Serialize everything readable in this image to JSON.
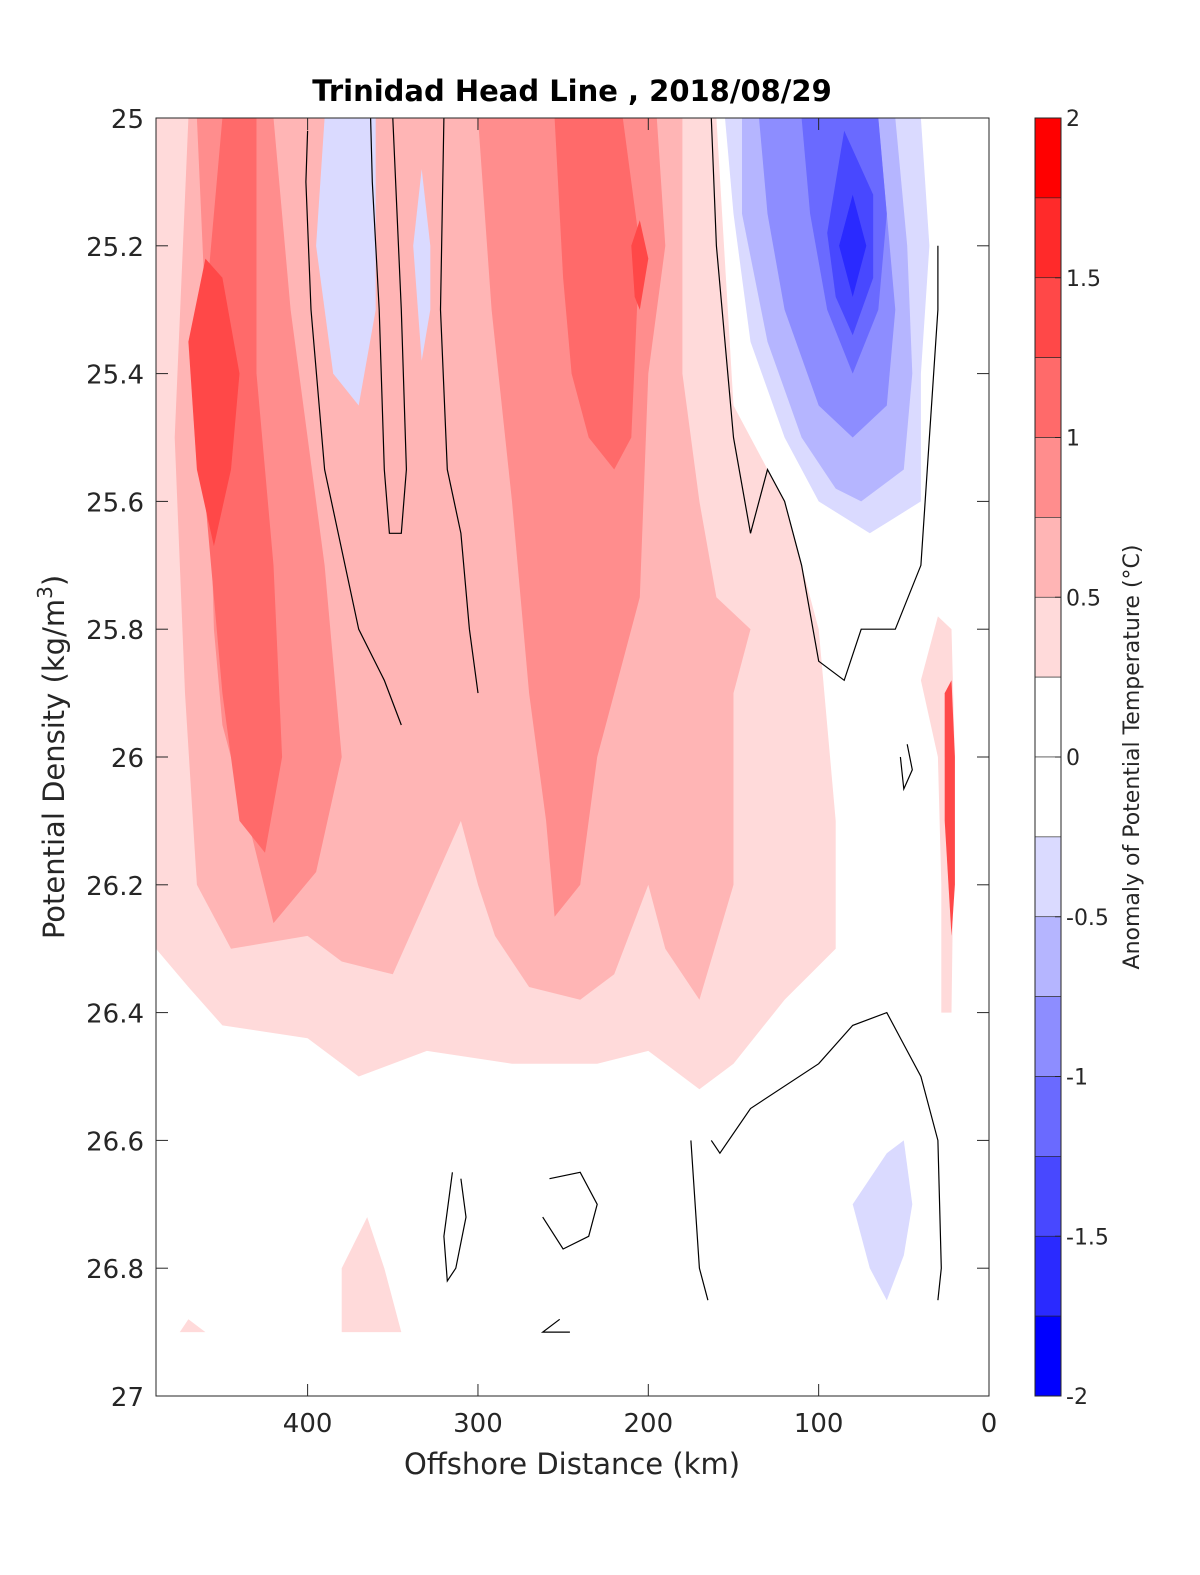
{
  "chart_data": {
    "type": "contour",
    "title": "Trinidad Head Line , 2018/08/29",
    "xlabel": "Offshore Distance (km)",
    "ylabel_base": "Potential Density (kg/m",
    "ylabel_sup": "3",
    "ylabel_end": ")",
    "colorbar_label": "Anomaly of Potential Temperature (°C)",
    "x_reversed": true,
    "xlim": [
      489,
      0
    ],
    "ylim": [
      25,
      27
    ],
    "y_reversed": true,
    "x_ticks": [
      400,
      300,
      200,
      100,
      0
    ],
    "x_tick_labels": [
      "400",
      "300",
      "200",
      "100",
      "0"
    ],
    "y_ticks": [
      25,
      25.2,
      25.4,
      25.6,
      25.8,
      26,
      26.2,
      26.4,
      26.6,
      26.8,
      27
    ],
    "y_tick_labels": [
      "25",
      "25.2",
      "25.4",
      "25.6",
      "25.8",
      "26",
      "26.2",
      "26.4",
      "26.6",
      "26.8",
      "27"
    ],
    "colorbar": {
      "min": -2,
      "max": 2,
      "ticks": [
        2,
        1.5,
        1,
        0.5,
        0,
        -0.5,
        -1,
        -1.5,
        -2
      ],
      "tick_labels": [
        "2",
        "1.5",
        "1",
        "0.5",
        "0",
        "-0.5",
        "-1",
        "-1.5",
        "-2"
      ],
      "bins": [
        {
          "from": 1.75,
          "to": 2.0,
          "color": "#ff0000"
        },
        {
          "from": 1.5,
          "to": 1.75,
          "color": "#ff2a2a"
        },
        {
          "from": 1.25,
          "to": 1.5,
          "color": "#ff4848"
        },
        {
          "from": 1.0,
          "to": 1.25,
          "color": "#ff6a6a"
        },
        {
          "from": 0.75,
          "to": 1.0,
          "color": "#ff8d8d"
        },
        {
          "from": 0.5,
          "to": 0.75,
          "color": "#ffb5b5"
        },
        {
          "from": 0.25,
          "to": 0.5,
          "color": "#ffdada"
        },
        {
          "from": 0.0,
          "to": 0.25,
          "color": "#ffffff"
        },
        {
          "from": -0.25,
          "to": 0.0,
          "color": "#ffffff"
        },
        {
          "from": -0.5,
          "to": -0.25,
          "color": "#dadaff"
        },
        {
          "from": -0.75,
          "to": -0.5,
          "color": "#b5b5ff"
        },
        {
          "from": -1.0,
          "to": -0.75,
          "color": "#8d8dff"
        },
        {
          "from": -1.25,
          "to": -1.0,
          "color": "#6a6aff"
        },
        {
          "from": -1.5,
          "to": -1.25,
          "color": "#4848ff"
        },
        {
          "from": -1.75,
          "to": -1.5,
          "color": "#2a2aff"
        },
        {
          "from": -2.0,
          "to": -1.75,
          "color": "#0000ff"
        }
      ]
    },
    "regions": [
      {
        "level": 0.25,
        "points": [
          [
            489,
            25.0
          ],
          [
            489,
            26.3
          ],
          [
            470,
            26.36
          ],
          [
            450,
            26.42
          ],
          [
            400,
            26.44
          ],
          [
            370,
            26.5
          ],
          [
            330,
            26.46
          ],
          [
            280,
            26.48
          ],
          [
            230,
            26.48
          ],
          [
            200,
            26.46
          ],
          [
            170,
            26.52
          ],
          [
            150,
            26.48
          ],
          [
            120,
            26.38
          ],
          [
            90,
            26.3
          ],
          [
            90,
            26.1
          ],
          [
            100,
            25.8
          ],
          [
            120,
            25.6
          ],
          [
            150,
            25.45
          ],
          [
            160,
            25.0
          ]
        ]
      },
      {
        "level": 0.25,
        "points": [
          [
            380,
            26.8
          ],
          [
            365,
            26.72
          ],
          [
            355,
            26.8
          ],
          [
            345,
            26.9
          ],
          [
            380,
            26.9
          ]
        ]
      },
      {
        "level": 0.25,
        "points": [
          [
            470,
            26.88
          ],
          [
            460,
            26.9
          ],
          [
            475,
            26.9
          ]
        ]
      },
      {
        "level": 0.25,
        "points": [
          [
            40,
            25.88
          ],
          [
            30,
            26.0
          ],
          [
            28,
            26.2
          ],
          [
            28,
            26.4
          ],
          [
            22,
            26.4
          ],
          [
            20,
            26.0
          ],
          [
            22,
            25.8
          ],
          [
            30,
            25.78
          ]
        ]
      },
      {
        "level": 0.5,
        "points": [
          [
            470,
            25.0
          ],
          [
            478,
            25.5
          ],
          [
            472,
            25.9
          ],
          [
            465,
            26.2
          ],
          [
            445,
            26.3
          ],
          [
            400,
            26.28
          ],
          [
            380,
            26.32
          ],
          [
            350,
            26.34
          ],
          [
            330,
            26.22
          ],
          [
            310,
            26.1
          ],
          [
            300,
            26.2
          ],
          [
            290,
            26.28
          ],
          [
            270,
            26.36
          ],
          [
            240,
            26.38
          ],
          [
            220,
            26.34
          ],
          [
            200,
            26.2
          ],
          [
            190,
            26.3
          ],
          [
            170,
            26.38
          ],
          [
            150,
            26.2
          ],
          [
            150,
            25.9
          ],
          [
            140,
            25.8
          ],
          [
            160,
            25.75
          ],
          [
            170,
            25.6
          ],
          [
            180,
            25.4
          ],
          [
            180,
            25.0
          ]
        ]
      },
      {
        "level": 0.75,
        "points": [
          [
            465,
            25.0
          ],
          [
            460,
            25.3
          ],
          [
            455,
            25.8
          ],
          [
            450,
            25.95
          ],
          [
            435,
            26.1
          ],
          [
            420,
            26.26
          ],
          [
            395,
            26.18
          ],
          [
            380,
            26.0
          ],
          [
            390,
            25.7
          ],
          [
            410,
            25.3
          ],
          [
            420,
            25.0
          ]
        ]
      },
      {
        "level": 0.75,
        "points": [
          [
            300,
            25.0
          ],
          [
            292,
            25.3
          ],
          [
            280,
            25.6
          ],
          [
            270,
            25.9
          ],
          [
            260,
            26.1
          ],
          [
            255,
            26.25
          ],
          [
            240,
            26.2
          ],
          [
            230,
            26.0
          ],
          [
            215,
            25.85
          ],
          [
            205,
            25.75
          ],
          [
            200,
            25.4
          ],
          [
            190,
            25.2
          ],
          [
            195,
            25.0
          ]
        ]
      },
      {
        "level": 1.0,
        "points": [
          [
            450,
            25.0
          ],
          [
            460,
            25.3
          ],
          [
            460,
            25.6
          ],
          [
            450,
            25.9
          ],
          [
            440,
            26.1
          ],
          [
            425,
            26.15
          ],
          [
            415,
            26.0
          ],
          [
            420,
            25.7
          ],
          [
            430,
            25.4
          ],
          [
            430,
            25.0
          ]
        ]
      },
      {
        "level": 1.0,
        "points": [
          [
            255,
            25.0
          ],
          [
            250,
            25.25
          ],
          [
            245,
            25.4
          ],
          [
            235,
            25.5
          ],
          [
            220,
            25.55
          ],
          [
            210,
            25.5
          ],
          [
            205,
            25.2
          ],
          [
            215,
            25.0
          ]
        ]
      },
      {
        "level": 1.25,
        "points": [
          [
            460,
            25.22
          ],
          [
            470,
            25.35
          ],
          [
            465,
            25.55
          ],
          [
            455,
            25.67
          ],
          [
            445,
            25.55
          ],
          [
            440,
            25.4
          ],
          [
            450,
            25.25
          ]
        ]
      },
      {
        "level": 1.25,
        "points": [
          [
            205,
            25.16
          ],
          [
            210,
            25.2
          ],
          [
            208,
            25.28
          ],
          [
            205,
            25.3
          ],
          [
            200,
            25.22
          ]
        ]
      },
      {
        "level": 1.25,
        "points": [
          [
            22,
            25.88
          ],
          [
            20,
            26.0
          ],
          [
            20,
            26.2
          ],
          [
            22,
            26.28
          ],
          [
            26,
            26.1
          ],
          [
            26,
            25.9
          ]
        ]
      },
      {
        "level": -0.25,
        "points": [
          [
            390,
            25.0
          ],
          [
            395,
            25.2
          ],
          [
            385,
            25.4
          ],
          [
            370,
            25.45
          ],
          [
            360,
            25.3
          ],
          [
            360,
            25.0
          ]
        ]
      },
      {
        "level": -0.25,
        "points": [
          [
            333,
            25.08
          ],
          [
            328,
            25.2
          ],
          [
            328,
            25.3
          ],
          [
            333,
            25.38
          ],
          [
            338,
            25.2
          ]
        ]
      },
      {
        "level": -0.25,
        "points": [
          [
            155,
            25.0
          ],
          [
            150,
            25.15
          ],
          [
            140,
            25.35
          ],
          [
            120,
            25.5
          ],
          [
            100,
            25.6
          ],
          [
            70,
            25.65
          ],
          [
            40,
            25.6
          ],
          [
            40,
            25.4
          ],
          [
            35,
            25.2
          ],
          [
            40,
            25.0
          ]
        ]
      },
      {
        "level": -0.25,
        "points": [
          [
            80,
            26.7
          ],
          [
            70,
            26.8
          ],
          [
            60,
            26.85
          ],
          [
            50,
            26.78
          ],
          [
            45,
            26.7
          ],
          [
            50,
            26.6
          ],
          [
            60,
            26.62
          ]
        ]
      },
      {
        "level": -0.5,
        "points": [
          [
            145,
            25.0
          ],
          [
            145,
            25.15
          ],
          [
            130,
            25.35
          ],
          [
            110,
            25.5
          ],
          [
            90,
            25.58
          ],
          [
            75,
            25.6
          ],
          [
            50,
            25.55
          ],
          [
            45,
            25.4
          ],
          [
            48,
            25.2
          ],
          [
            55,
            25.0
          ]
        ]
      },
      {
        "level": -0.75,
        "points": [
          [
            135,
            25.0
          ],
          [
            130,
            25.15
          ],
          [
            120,
            25.3
          ],
          [
            100,
            25.45
          ],
          [
            80,
            25.5
          ],
          [
            60,
            25.45
          ],
          [
            55,
            25.3
          ],
          [
            60,
            25.15
          ],
          [
            65,
            25.0
          ]
        ]
      },
      {
        "level": -1.0,
        "points": [
          [
            110,
            25.0
          ],
          [
            105,
            25.15
          ],
          [
            95,
            25.3
          ],
          [
            80,
            25.4
          ],
          [
            65,
            25.3
          ],
          [
            60,
            25.15
          ],
          [
            65,
            25.0
          ]
        ]
      },
      {
        "level": -1.25,
        "points": [
          [
            85,
            25.02
          ],
          [
            95,
            25.18
          ],
          [
            90,
            25.28
          ],
          [
            80,
            25.34
          ],
          [
            68,
            25.25
          ],
          [
            68,
            25.12
          ]
        ]
      },
      {
        "level": -1.5,
        "points": [
          [
            80,
            25.12
          ],
          [
            88,
            25.2
          ],
          [
            80,
            25.28
          ],
          [
            72,
            25.2
          ]
        ]
      }
    ],
    "zero_contours": [
      [
        [
          400,
          25.02
        ],
        [
          401,
          25.1
        ],
        [
          398,
          25.3
        ],
        [
          390,
          25.55
        ],
        [
          370,
          25.8
        ],
        [
          355,
          25.88
        ],
        [
          345,
          25.95
        ]
      ],
      [
        [
          363,
          25.0
        ],
        [
          362,
          25.1
        ],
        [
          358,
          25.3
        ],
        [
          355,
          25.55
        ],
        [
          352,
          25.65
        ],
        [
          345,
          25.65
        ],
        [
          342,
          25.55
        ],
        [
          345,
          25.3
        ],
        [
          350,
          25.0
        ]
      ],
      [
        [
          320,
          25.0
        ],
        [
          322,
          25.3
        ],
        [
          318,
          25.55
        ],
        [
          310,
          25.65
        ],
        [
          305,
          25.8
        ],
        [
          300,
          25.9
        ]
      ],
      [
        [
          315,
          26.65
        ],
        [
          320,
          26.75
        ],
        [
          318,
          26.82
        ],
        [
          313,
          26.8
        ],
        [
          307,
          26.72
        ],
        [
          310,
          26.66
        ]
      ],
      [
        [
          258,
          26.66
        ],
        [
          240,
          26.65
        ],
        [
          230,
          26.7
        ],
        [
          235,
          26.75
        ],
        [
          250,
          26.77
        ],
        [
          262,
          26.72
        ]
      ],
      [
        [
          252,
          26.88
        ],
        [
          262,
          26.9
        ],
        [
          246,
          26.9
        ]
      ],
      [
        [
          163,
          26.6
        ],
        [
          158,
          26.62
        ],
        [
          140,
          26.55
        ],
        [
          100,
          26.48
        ],
        [
          80,
          26.42
        ],
        [
          60,
          26.4
        ],
        [
          50,
          26.45
        ],
        [
          40,
          26.5
        ],
        [
          30,
          26.6
        ],
        [
          28,
          26.8
        ],
        [
          30,
          26.85
        ]
      ],
      [
        [
          165,
          26.85
        ],
        [
          170,
          26.8
        ],
        [
          175,
          26.6
        ]
      ],
      [
        [
          163,
          25.0
        ],
        [
          160,
          25.2
        ],
        [
          150,
          25.5
        ],
        [
          140,
          25.65
        ],
        [
          130,
          25.55
        ],
        [
          120,
          25.6
        ],
        [
          110,
          25.7
        ],
        [
          100,
          25.85
        ],
        [
          85,
          25.88
        ],
        [
          75,
          25.8
        ],
        [
          55,
          25.8
        ],
        [
          40,
          25.7
        ],
        [
          30,
          25.3
        ],
        [
          30,
          25.2
        ]
      ],
      [
        [
          48,
          25.98
        ],
        [
          45,
          26.02
        ],
        [
          50,
          26.05
        ],
        [
          52,
          26.0
        ]
      ]
    ]
  }
}
